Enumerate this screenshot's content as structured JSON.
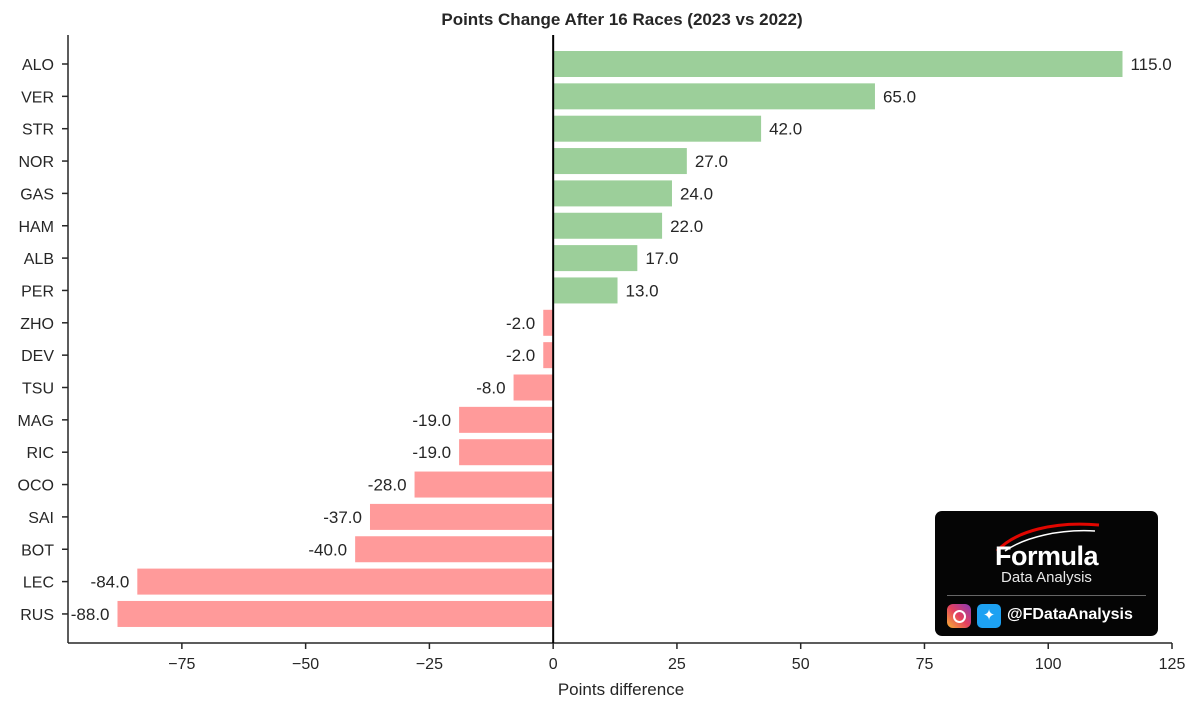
{
  "chart_data": {
    "type": "bar",
    "orientation": "horizontal",
    "title": "Points Change After 16 Races (2023 vs 2022)",
    "xlabel": "Points difference",
    "ylabel": "",
    "categories": [
      "ALO",
      "VER",
      "STR",
      "NOR",
      "GAS",
      "HAM",
      "ALB",
      "PER",
      "ZHO",
      "DEV",
      "TSU",
      "MAG",
      "RIC",
      "OCO",
      "SAI",
      "BOT",
      "LEC",
      "RUS"
    ],
    "values": [
      115,
      65,
      42,
      27,
      24,
      22,
      17,
      13,
      -2,
      -2,
      -8,
      -19,
      -19,
      -28,
      -37,
      -40,
      -84,
      -88
    ],
    "value_labels": [
      "115.0",
      "65.0",
      "42.0",
      "27.0",
      "24.0",
      "22.0",
      "17.0",
      "13.0",
      "-2.0",
      "-2.0",
      "-8.0",
      "-19.0",
      "-19.0",
      "-28.0",
      "-37.0",
      "-40.0",
      "-84.0",
      "-88.0"
    ],
    "xlim": [
      -98,
      125
    ],
    "xticks": [
      -75,
      -50,
      -25,
      0,
      25,
      50,
      75,
      100,
      125
    ],
    "xtick_labels": [
      "−75",
      "−50",
      "−25",
      "0",
      "25",
      "50",
      "75",
      "100",
      "125"
    ],
    "grid": false,
    "colors": {
      "positive": "#9ccf9a",
      "negative": "#ff9a9a",
      "axis": "#262626"
    }
  },
  "brand": {
    "word_top": "Formula",
    "word_bottom": "Data Analysis",
    "handle": "@FDataAnalysis",
    "icons": [
      "instagram-icon",
      "twitter-icon"
    ]
  }
}
